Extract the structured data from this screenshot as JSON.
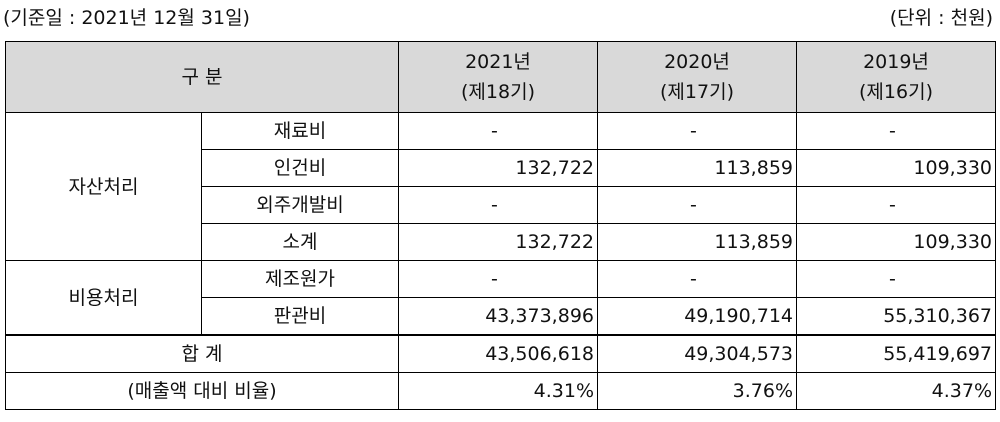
{
  "caption": {
    "left": "(기준일 : 2021년 12월 31일)",
    "right": "(단위 : 천원)"
  },
  "header": {
    "category": "구 분",
    "columns": [
      {
        "year": "2021년",
        "period": "(제18기)"
      },
      {
        "year": "2020년",
        "period": "(제17기)"
      },
      {
        "year": "2019년",
        "period": "(제16기)"
      }
    ]
  },
  "groups": [
    {
      "label": "자산처리",
      "rows": [
        {
          "item": "재료비",
          "values": [
            "-",
            "-",
            "-"
          ]
        },
        {
          "item": "인건비",
          "values": [
            "132,722",
            "113,859",
            "109,330"
          ]
        },
        {
          "item": "외주개발비",
          "values": [
            "-",
            "-",
            "-"
          ]
        },
        {
          "item": "소계",
          "values": [
            "132,722",
            "113,859",
            "109,330"
          ]
        }
      ]
    },
    {
      "label": "비용처리",
      "rows": [
        {
          "item": "제조원가",
          "values": [
            "-",
            "-",
            "-"
          ]
        },
        {
          "item": "판관비",
          "values": [
            "43,373,896",
            "49,190,714",
            "55,310,367"
          ]
        }
      ]
    }
  ],
  "total": {
    "label": "합 계",
    "values": [
      "43,506,618",
      "49,304,573",
      "55,419,697"
    ]
  },
  "ratio": {
    "label": "(매출액 대비 비율)",
    "values": [
      "4.31%",
      "3.76%",
      "4.37%"
    ]
  }
}
